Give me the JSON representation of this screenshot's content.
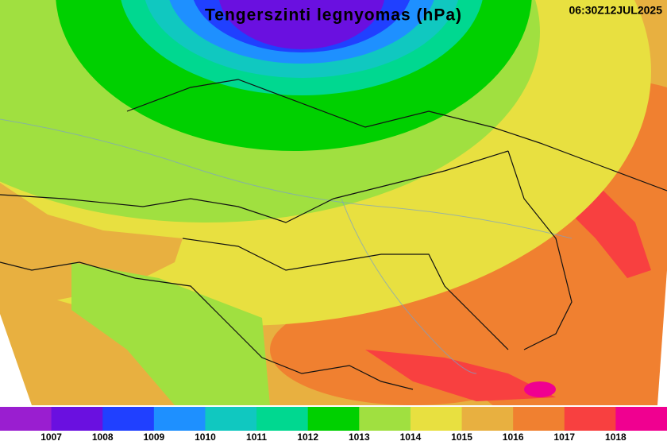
{
  "title": "Tengerszinti legnyomas (hPa)",
  "timestamp": "06:30Z12JUL2025",
  "legend": {
    "colors": [
      "#9a1ed0",
      "#6a10e0",
      "#2040ff",
      "#1e90ff",
      "#10c8c0",
      "#00d890",
      "#00d000",
      "#a0e040",
      "#e8e040",
      "#e8b040",
      "#f08030",
      "#f84040",
      "#f00090"
    ],
    "labels": [
      1007,
      1008,
      1009,
      1010,
      1011,
      1012,
      1013,
      1014,
      1015,
      1016,
      1017,
      1018
    ]
  }
}
